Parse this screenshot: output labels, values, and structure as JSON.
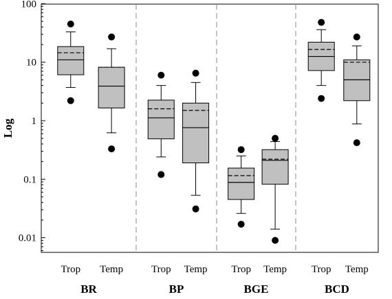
{
  "chart_data": {
    "type": "box",
    "ylabel": "Log",
    "yscale": "log",
    "ylim": [
      0.005,
      100
    ],
    "yticks": [
      {
        "value": 0.01,
        "label": "0.01"
      },
      {
        "value": 0.1,
        "label": "0.1"
      },
      {
        "value": 1,
        "label": "1"
      },
      {
        "value": 10,
        "label": "10"
      },
      {
        "value": 100,
        "label": "100"
      }
    ],
    "box_color": "#c0c0c0",
    "groups": [
      {
        "name": "BR",
        "boxes": [
          {
            "label": "Trop",
            "whisker_low": 3.7,
            "q1": 6.1,
            "median": 11,
            "mean": 14.5,
            "q3": 18.5,
            "whisker_high": 33,
            "outliers": [
              45,
              2.2
            ]
          },
          {
            "label": "Temp",
            "whisker_low": 0.62,
            "q1": 1.65,
            "median": 3.9,
            "mean": 8.2,
            "q3": 8.2,
            "whisker_high": 17,
            "outliers": [
              27,
              0.33
            ]
          }
        ]
      },
      {
        "name": "BP",
        "boxes": [
          {
            "label": "Trop",
            "whisker_low": 0.24,
            "q1": 0.49,
            "median": 1.12,
            "mean": 1.6,
            "q3": 2.25,
            "whisker_high": 4.0,
            "outliers": [
              6.0,
              0.12
            ]
          },
          {
            "label": "Temp",
            "whisker_low": 0.053,
            "q1": 0.19,
            "median": 0.76,
            "mean": 1.5,
            "q3": 2.0,
            "whisker_high": 4.5,
            "outliers": [
              6.5,
              0.031
            ]
          }
        ]
      },
      {
        "name": "BGE",
        "boxes": [
          {
            "label": "Trop",
            "whisker_low": 0.026,
            "q1": 0.045,
            "median": 0.088,
            "mean": 0.115,
            "q3": 0.155,
            "whisker_high": 0.25,
            "outliers": [
              0.32,
              0.017
            ]
          },
          {
            "label": "Temp",
            "whisker_low": 0.014,
            "q1": 0.082,
            "median": 0.21,
            "mean": 0.22,
            "q3": 0.32,
            "whisker_high": 0.44,
            "outliers": [
              0.5,
              0.009
            ]
          }
        ]
      },
      {
        "name": "BCD",
        "boxes": [
          {
            "label": "Trop",
            "whisker_low": 4.0,
            "q1": 7.2,
            "median": 12.5,
            "mean": 16.5,
            "q3": 22,
            "whisker_high": 36,
            "outliers": [
              48,
              2.4
            ]
          },
          {
            "label": "Temp",
            "whisker_low": 0.88,
            "q1": 2.2,
            "median": 5.0,
            "mean": 10.0,
            "q3": 11,
            "whisker_high": 19,
            "outliers": [
              27,
              0.42
            ]
          }
        ]
      }
    ]
  }
}
